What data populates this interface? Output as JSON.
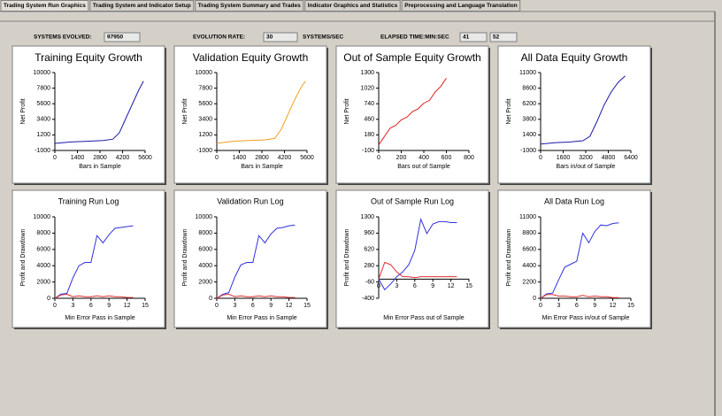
{
  "tabs": [
    "Trading System Run Graphics",
    "Trading System and Indicator Setup",
    "Trading System Summary and Trades",
    "Indicator Graphics and Statistics",
    "Preprocessing and Language Translation"
  ],
  "status": {
    "systems_evolved_label": "SYSTEMS EVOLVED:",
    "systems_evolved": "97950",
    "evolution_rate_label": "EVOLUTION RATE:",
    "evolution_rate": "30",
    "rate_unit": "SYSTEMS/SEC",
    "elapsed_label": "ELAPSED TIME:MIN:SEC",
    "minutes": "41",
    "seconds": "52"
  },
  "charts": [
    {
      "type": "line",
      "title": "Training Equity Growth",
      "xlabel": "Bars in Sample",
      "ylabel": "Net Profit",
      "xlim": [
        0,
        5600
      ],
      "xticks": [
        0,
        1400,
        2800,
        4200,
        5600
      ],
      "ylim": [
        -1000,
        10000
      ],
      "yticks": [
        -1000,
        1200,
        3400,
        5600,
        7800,
        10000
      ],
      "series": [
        {
          "color": "#1a1aa8",
          "x": [
            0,
            1000,
            2000,
            3000,
            3600,
            4000,
            4400,
            4800,
            5200,
            5500
          ],
          "values": [
            0,
            200,
            300,
            400,
            600,
            1500,
            3500,
            5500,
            7500,
            8800
          ]
        }
      ]
    },
    {
      "type": "line",
      "title": "Validation Equity Growth",
      "xlabel": "Bars in Sample",
      "ylabel": "Net Profit",
      "xlim": [
        0,
        5600
      ],
      "xticks": [
        0,
        1400,
        2800,
        4200,
        5600
      ],
      "ylim": [
        -1000,
        10000
      ],
      "yticks": [
        -1000,
        1200,
        3400,
        5600,
        7800,
        10000
      ],
      "series": [
        {
          "color": "#f0a020",
          "x": [
            0,
            1000,
            2000,
            3000,
            3600,
            4000,
            4400,
            4800,
            5200,
            5500
          ],
          "values": [
            0,
            300,
            400,
            500,
            700,
            2000,
            4000,
            6000,
            7800,
            8800
          ]
        }
      ]
    },
    {
      "type": "line",
      "title": "Out of Sample Equity Growth",
      "xlabel": "Bars out of Sample",
      "ylabel": "Net Profit",
      "xlim": [
        0,
        800
      ],
      "xticks": [
        0,
        200,
        400,
        600,
        800
      ],
      "ylim": [
        -100,
        1300
      ],
      "yticks": [
        -100,
        180,
        460,
        740,
        1020,
        1300
      ],
      "series": [
        {
          "color": "#e02020",
          "x": [
            0,
            50,
            100,
            150,
            200,
            250,
            300,
            350,
            400,
            450,
            500,
            550,
            600
          ],
          "values": [
            0,
            150,
            300,
            350,
            450,
            500,
            600,
            650,
            750,
            800,
            950,
            1050,
            1200
          ]
        }
      ]
    },
    {
      "type": "line",
      "title": "All Data Equity Growth",
      "xlabel": "Bars in/out of Sample",
      "ylabel": "Net Profit",
      "xlim": [
        0,
        6400
      ],
      "xticks": [
        0,
        1600,
        3200,
        4800,
        6400
      ],
      "ylim": [
        -1000,
        11000
      ],
      "yticks": [
        -1000,
        1400,
        3800,
        6200,
        8600,
        11000
      ],
      "series": [
        {
          "color": "#1a1aa8",
          "x": [
            0,
            1000,
            2000,
            3000,
            3500,
            4000,
            4500,
            5000,
            5500,
            6000
          ],
          "values": [
            0,
            200,
            300,
            500,
            1200,
            3500,
            6000,
            8000,
            9500,
            10500
          ]
        }
      ]
    },
    {
      "type": "line",
      "title": "Training Run Log",
      "xlabel": "Min Error Pass in Sample",
      "ylabel": "Profit and Drawdown",
      "xlim": [
        0,
        15
      ],
      "xticks": [
        0,
        3,
        6,
        9,
        12,
        15
      ],
      "ylim": [
        0,
        10000
      ],
      "yticks": [
        0,
        2000,
        4000,
        6000,
        8000,
        10000
      ],
      "series": [
        {
          "color": "#3030e0",
          "x": [
            0,
            1,
            2,
            3,
            4,
            5,
            6,
            7,
            8,
            9,
            10,
            11,
            12,
            13
          ],
          "values": [
            0,
            500,
            600,
            2500,
            4000,
            4400,
            4400,
            7700,
            6800,
            7800,
            8600,
            8700,
            8800,
            8900
          ]
        },
        {
          "color": "#e03030",
          "x": [
            0,
            1,
            2,
            3,
            4,
            5,
            6,
            7,
            8,
            9,
            10,
            11,
            12,
            13
          ],
          "values": [
            0,
            400,
            500,
            200,
            300,
            200,
            200,
            300,
            200,
            300,
            200,
            200,
            100,
            100
          ]
        }
      ]
    },
    {
      "type": "line",
      "title": "Validation Run Log",
      "xlabel": "Min Error Pass in Sample",
      "ylabel": "Profit and Drawdown",
      "xlim": [
        0,
        15
      ],
      "xticks": [
        0,
        3,
        6,
        9,
        12,
        15
      ],
      "ylim": [
        0,
        10000
      ],
      "yticks": [
        0,
        2000,
        4000,
        6000,
        8000,
        10000
      ],
      "series": [
        {
          "color": "#3030e0",
          "x": [
            0,
            1,
            2,
            3,
            4,
            5,
            6,
            7,
            8,
            9,
            10,
            11,
            12,
            13
          ],
          "values": [
            0,
            500,
            700,
            2600,
            4100,
            4400,
            4400,
            7700,
            6800,
            7900,
            8600,
            8700,
            8900,
            9000
          ]
        },
        {
          "color": "#e03030",
          "x": [
            0,
            1,
            2,
            3,
            4,
            5,
            6,
            7,
            8,
            9,
            10,
            11,
            12,
            13
          ],
          "values": [
            0,
            400,
            500,
            200,
            300,
            200,
            200,
            300,
            200,
            300,
            200,
            200,
            100,
            100
          ]
        }
      ]
    },
    {
      "type": "line",
      "title": "Out of Sample Run Log",
      "xlabel": "Min Error Pass out of Sample",
      "ylabel": "Profit and Drawdown",
      "xlim": [
        0,
        15
      ],
      "xticks": [
        0,
        3,
        6,
        9,
        12,
        15
      ],
      "ylim": [
        -400,
        1300
      ],
      "yticks": [
        -400,
        -60,
        280,
        620,
        960,
        1300
      ],
      "xaxis_at": 0,
      "series": [
        {
          "color": "#3030e0",
          "x": [
            0,
            1,
            2,
            3,
            4,
            5,
            6,
            7,
            8,
            9,
            10,
            11,
            12,
            13
          ],
          "values": [
            0,
            -220,
            -100,
            50,
            150,
            300,
            600,
            1250,
            950,
            1150,
            1200,
            1200,
            1180,
            1180
          ]
        },
        {
          "color": "#e03030",
          "x": [
            0,
            1,
            2,
            3,
            4,
            5,
            6,
            7,
            8,
            9,
            10,
            11,
            12,
            13
          ],
          "values": [
            0,
            350,
            300,
            150,
            50,
            50,
            30,
            50,
            50,
            50,
            50,
            50,
            50,
            50
          ]
        }
      ]
    },
    {
      "type": "line",
      "title": "All Data Run Log",
      "xlabel": "Min Error Pass in/out of Sample",
      "ylabel": "Profit and Drawdown",
      "xlim": [
        0,
        15
      ],
      "xticks": [
        0,
        3,
        6,
        9,
        12,
        15
      ],
      "ylim": [
        0,
        11000
      ],
      "yticks": [
        0,
        2200,
        4400,
        6600,
        8800,
        11000
      ],
      "series": [
        {
          "color": "#3030e0",
          "x": [
            0,
            1,
            2,
            3,
            4,
            5,
            6,
            7,
            8,
            9,
            10,
            11,
            12,
            13
          ],
          "values": [
            0,
            600,
            700,
            2500,
            4200,
            4600,
            5000,
            8800,
            7500,
            9000,
            9900,
            9800,
            10100,
            10200
          ]
        },
        {
          "color": "#e03030",
          "x": [
            0,
            1,
            2,
            3,
            4,
            5,
            6,
            7,
            8,
            9,
            10,
            11,
            12,
            13
          ],
          "values": [
            0,
            500,
            500,
            300,
            300,
            200,
            200,
            400,
            200,
            300,
            200,
            200,
            100,
            100
          ]
        }
      ]
    }
  ]
}
